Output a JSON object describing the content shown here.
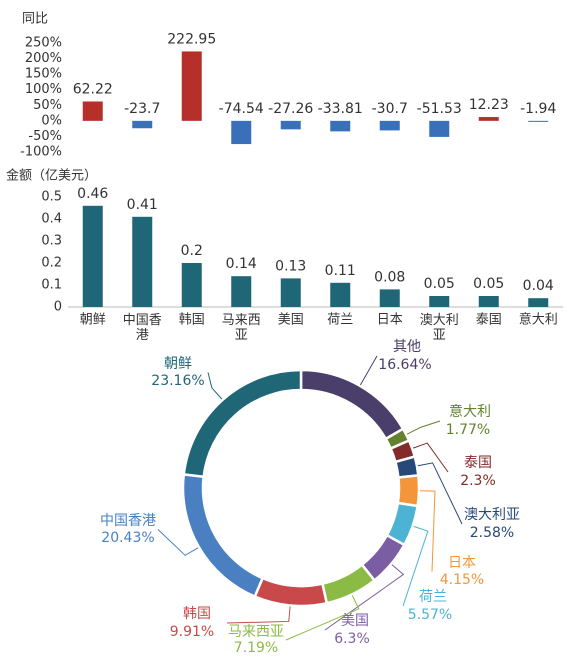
{
  "chart_data": [
    {
      "type": "bar",
      "y_label": "同比",
      "values": [
        62.22,
        -23.7,
        222.95,
        -74.54,
        -27.26,
        -33.81,
        -30.7,
        -51.53,
        12.23,
        -1.94
      ],
      "positive_color": "#b5302a",
      "negative_color": "#3a70b9",
      "ylim": [
        -100,
        250
      ],
      "yticks": [
        {
          "value": 250,
          "label": "250%"
        },
        {
          "value": 200,
          "label": "200%"
        },
        {
          "value": 150,
          "label": "150%"
        },
        {
          "value": 100,
          "label": "100%"
        },
        {
          "value": 50,
          "label": "50%"
        },
        {
          "value": 0,
          "label": "0%"
        },
        {
          "value": -50,
          "label": "-50%"
        },
        {
          "value": -100,
          "label": "-100%"
        }
      ]
    },
    {
      "type": "bar",
      "y_label": "金额（亿美元）",
      "categories": [
        "朝鲜",
        "中国香港",
        "韩国",
        "马来西亚",
        "美国",
        "荷兰",
        "日本",
        "澳大利亚",
        "泰国",
        "意大利"
      ],
      "values": [
        0.46,
        0.41,
        0.2,
        0.14,
        0.13,
        0.11,
        0.08,
        0.05,
        0.05,
        0.04
      ],
      "color": "#1f6677",
      "ylim": [
        0,
        0.5
      ],
      "yticks": [
        0,
        0.1,
        0.2,
        0.3,
        0.4,
        0.5
      ]
    },
    {
      "type": "pie",
      "donut": true,
      "categories": [
        "其他",
        "意大利",
        "泰国",
        "澳大利亚",
        "日本",
        "荷兰",
        "美国",
        "马来西亚",
        "韩国",
        "中国香港",
        "朝鲜"
      ],
      "values": [
        16.64,
        1.77,
        2.3,
        2.58,
        4.15,
        5.57,
        6.3,
        7.19,
        9.91,
        20.43,
        23.16
      ],
      "value_labels": [
        "16.64%",
        "1.77%",
        "2.3%",
        "2.58%",
        "4.15%",
        "5.57%",
        "6.3%",
        "7.19%",
        "9.91%",
        "20.43%",
        "23.16%"
      ],
      "colors": [
        "#4a3e6b",
        "#62822f",
        "#832a2a",
        "#27497a",
        "#f3953a",
        "#4cb3d4",
        "#7b5da3",
        "#8cbb45",
        "#c9494a",
        "#4a80c2",
        "#1f6677"
      ]
    }
  ]
}
